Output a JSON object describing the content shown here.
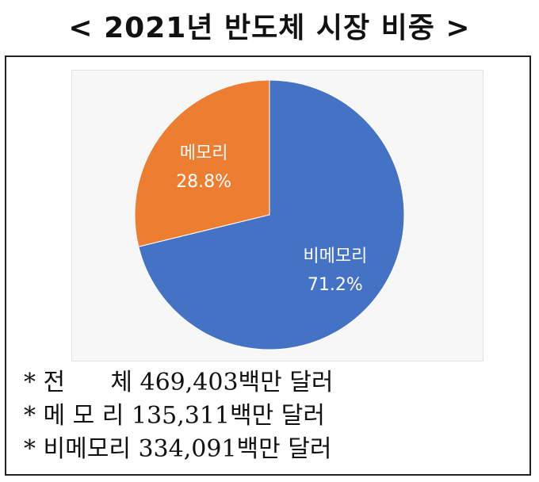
{
  "title": "< 2021년 반도체 시장 비중 >",
  "chart_data": {
    "type": "pie",
    "categories": [
      "메모리",
      "비메모리"
    ],
    "values": [
      28.8,
      71.2
    ],
    "labels": [
      "28.8%",
      "71.2%"
    ],
    "colors": [
      "#ed7d31",
      "#4472c4"
    ]
  },
  "notes": [
    "* 전      체 469,403백만 달러",
    "* 메 모 리 135,311백만 달러",
    "* 비메모리 334,091백만 달러"
  ]
}
